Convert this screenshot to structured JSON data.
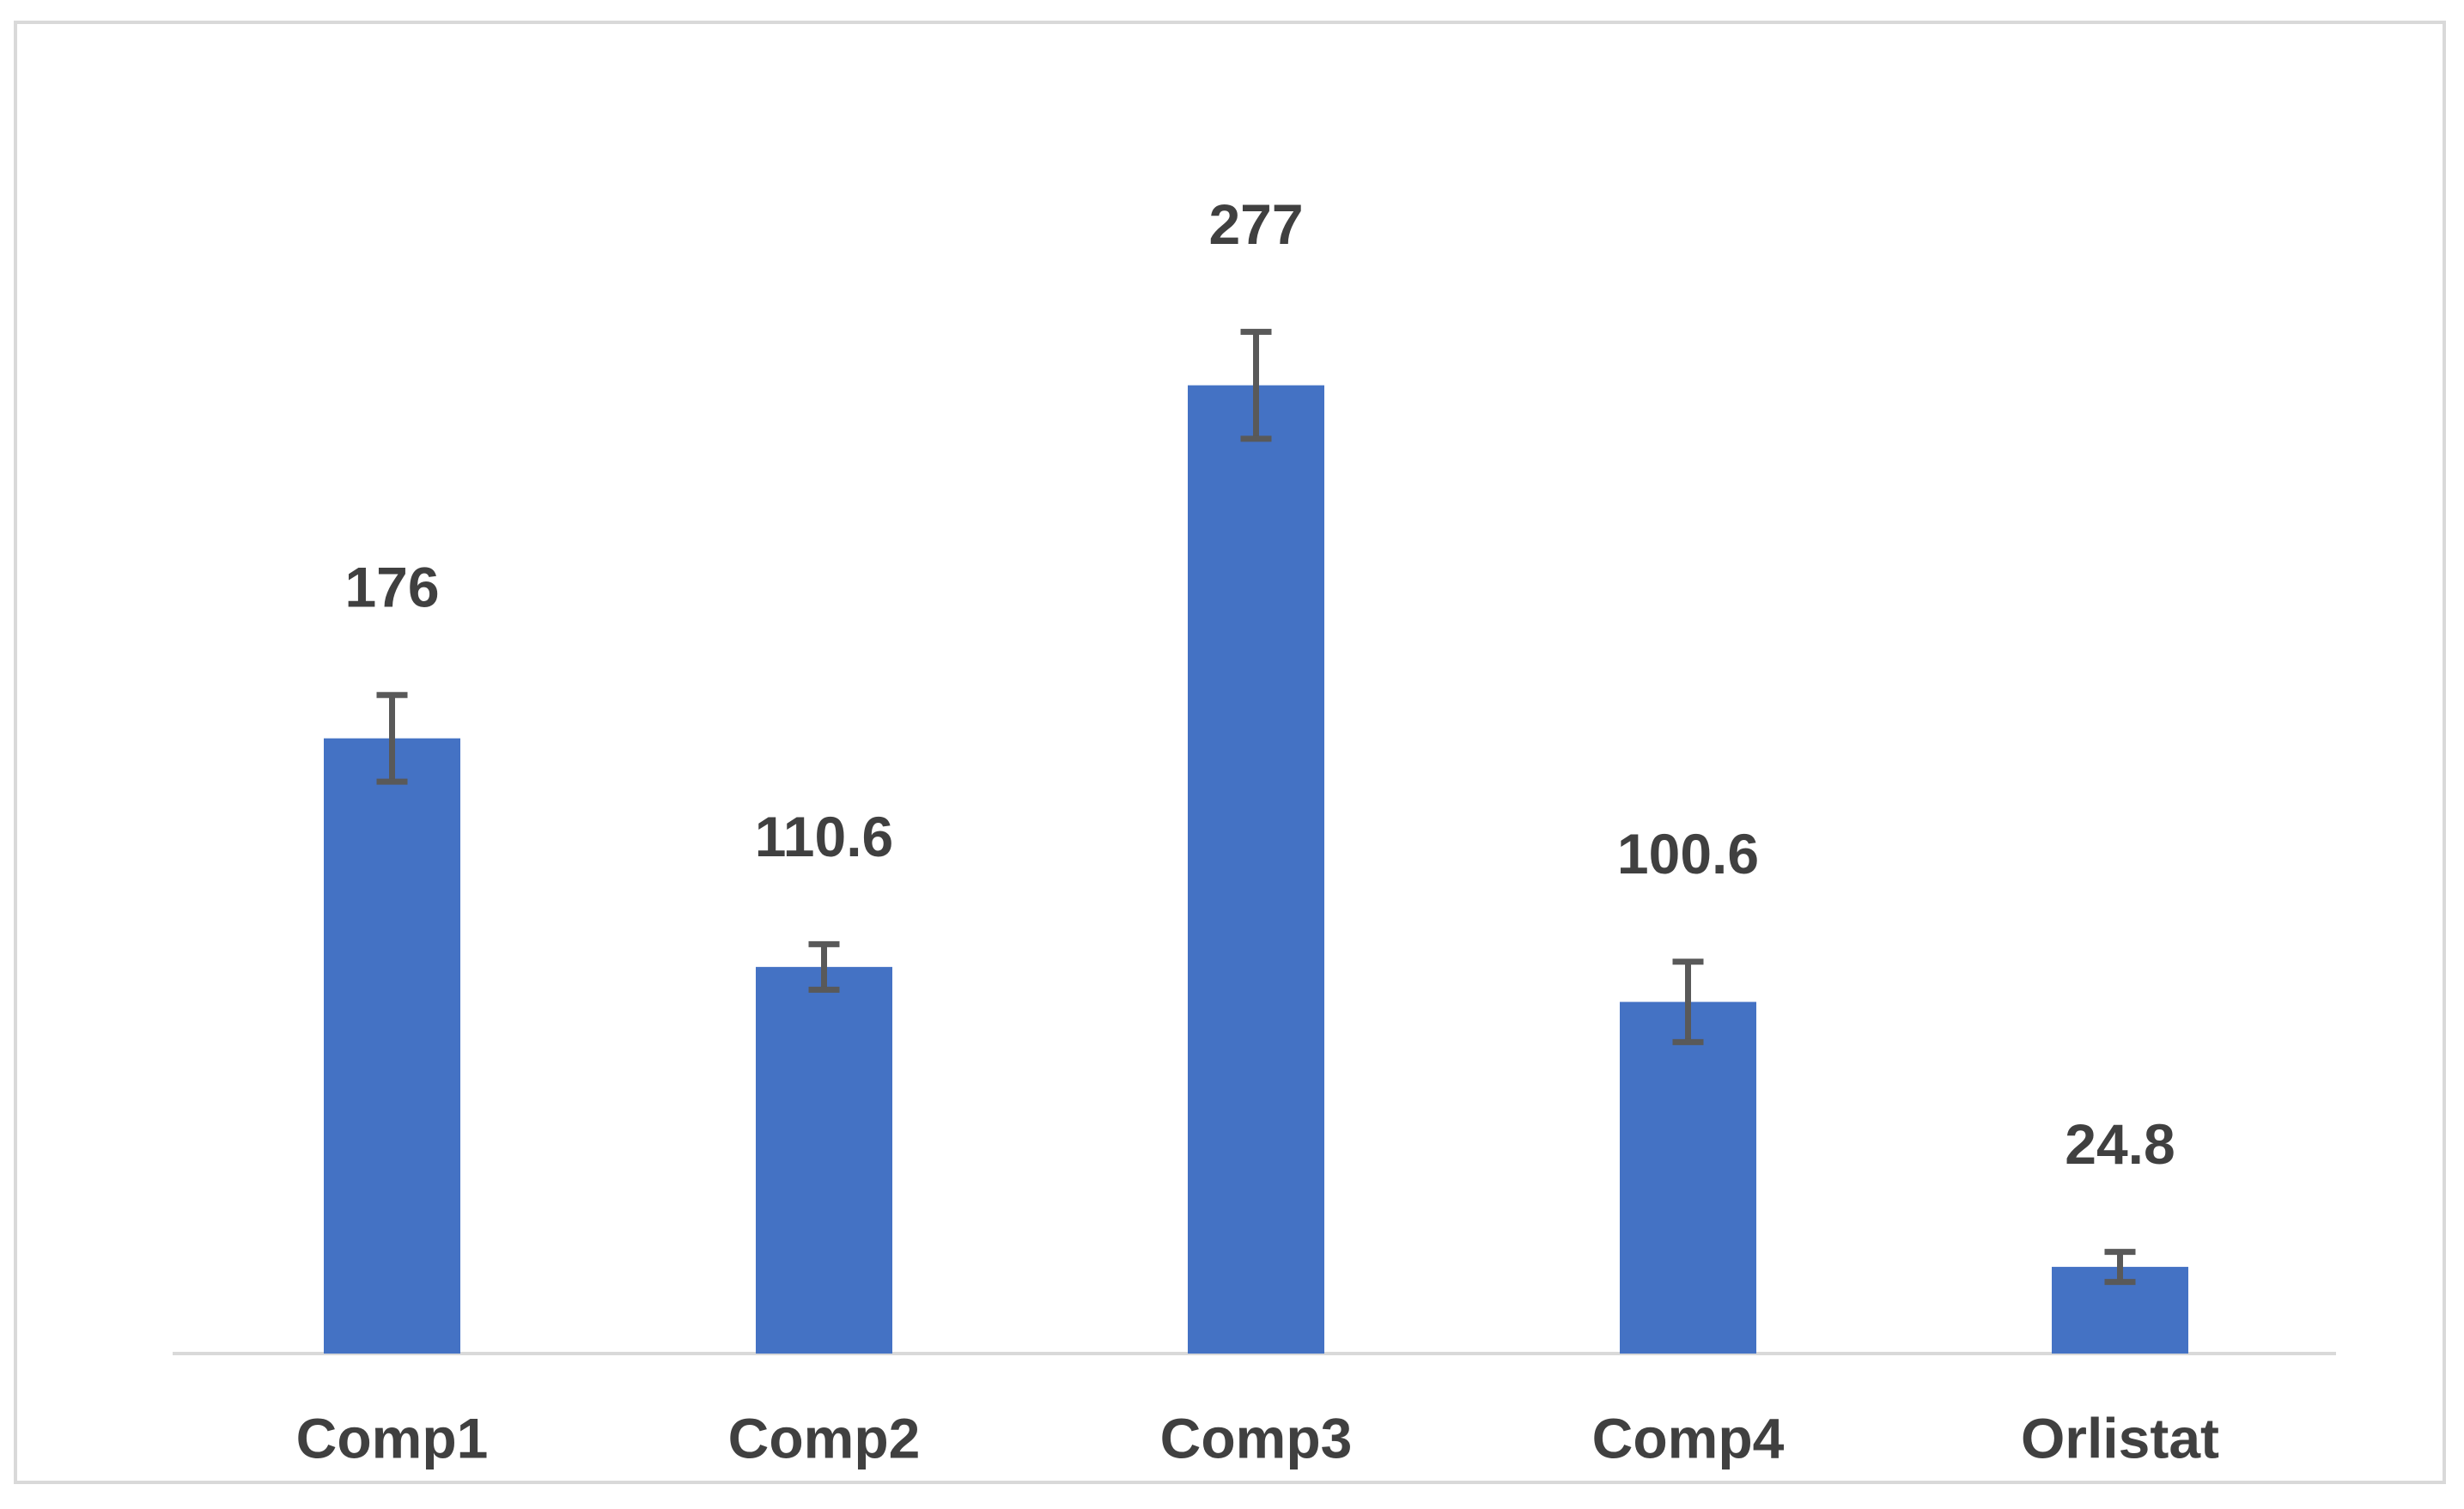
{
  "chart_data": {
    "type": "bar",
    "categories": [
      "Comp1",
      "Comp2",
      "Comp3",
      "Comp4",
      "Orlistat"
    ],
    "values": [
      176,
      110.6,
      277,
      100.6,
      24.8
    ],
    "errors": [
      12.4,
      6.5,
      15.3,
      11.5,
      4.3
    ],
    "color": "#4472c4"
  }
}
